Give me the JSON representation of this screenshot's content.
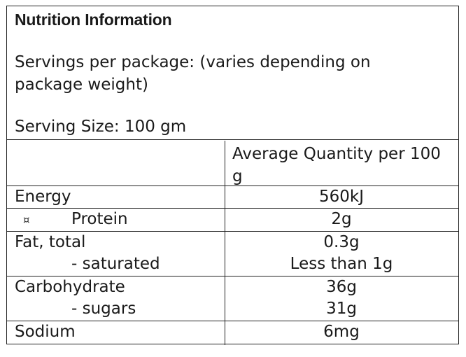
{
  "title": "Nutrition Information",
  "servings_per_package": "Servings per package: (varies depending on package weight)",
  "serving_size": "Serving Size: 100 gm",
  "column_header": "Average Quantity per 100 g",
  "bullet_glyph": "¤",
  "rows": [
    {
      "label": "Energy",
      "value": "560kJ"
    },
    {
      "label": "Protein",
      "value": "2g"
    },
    {
      "label": "Fat, total",
      "value": "0.3g"
    },
    {
      "label": "- saturated",
      "value": "Less than 1g"
    },
    {
      "label": "Carbohydrate",
      "value": "36g"
    },
    {
      "label": "- sugars",
      "value": "31g"
    },
    {
      "label": "Sodium",
      "value": "6mg"
    }
  ]
}
